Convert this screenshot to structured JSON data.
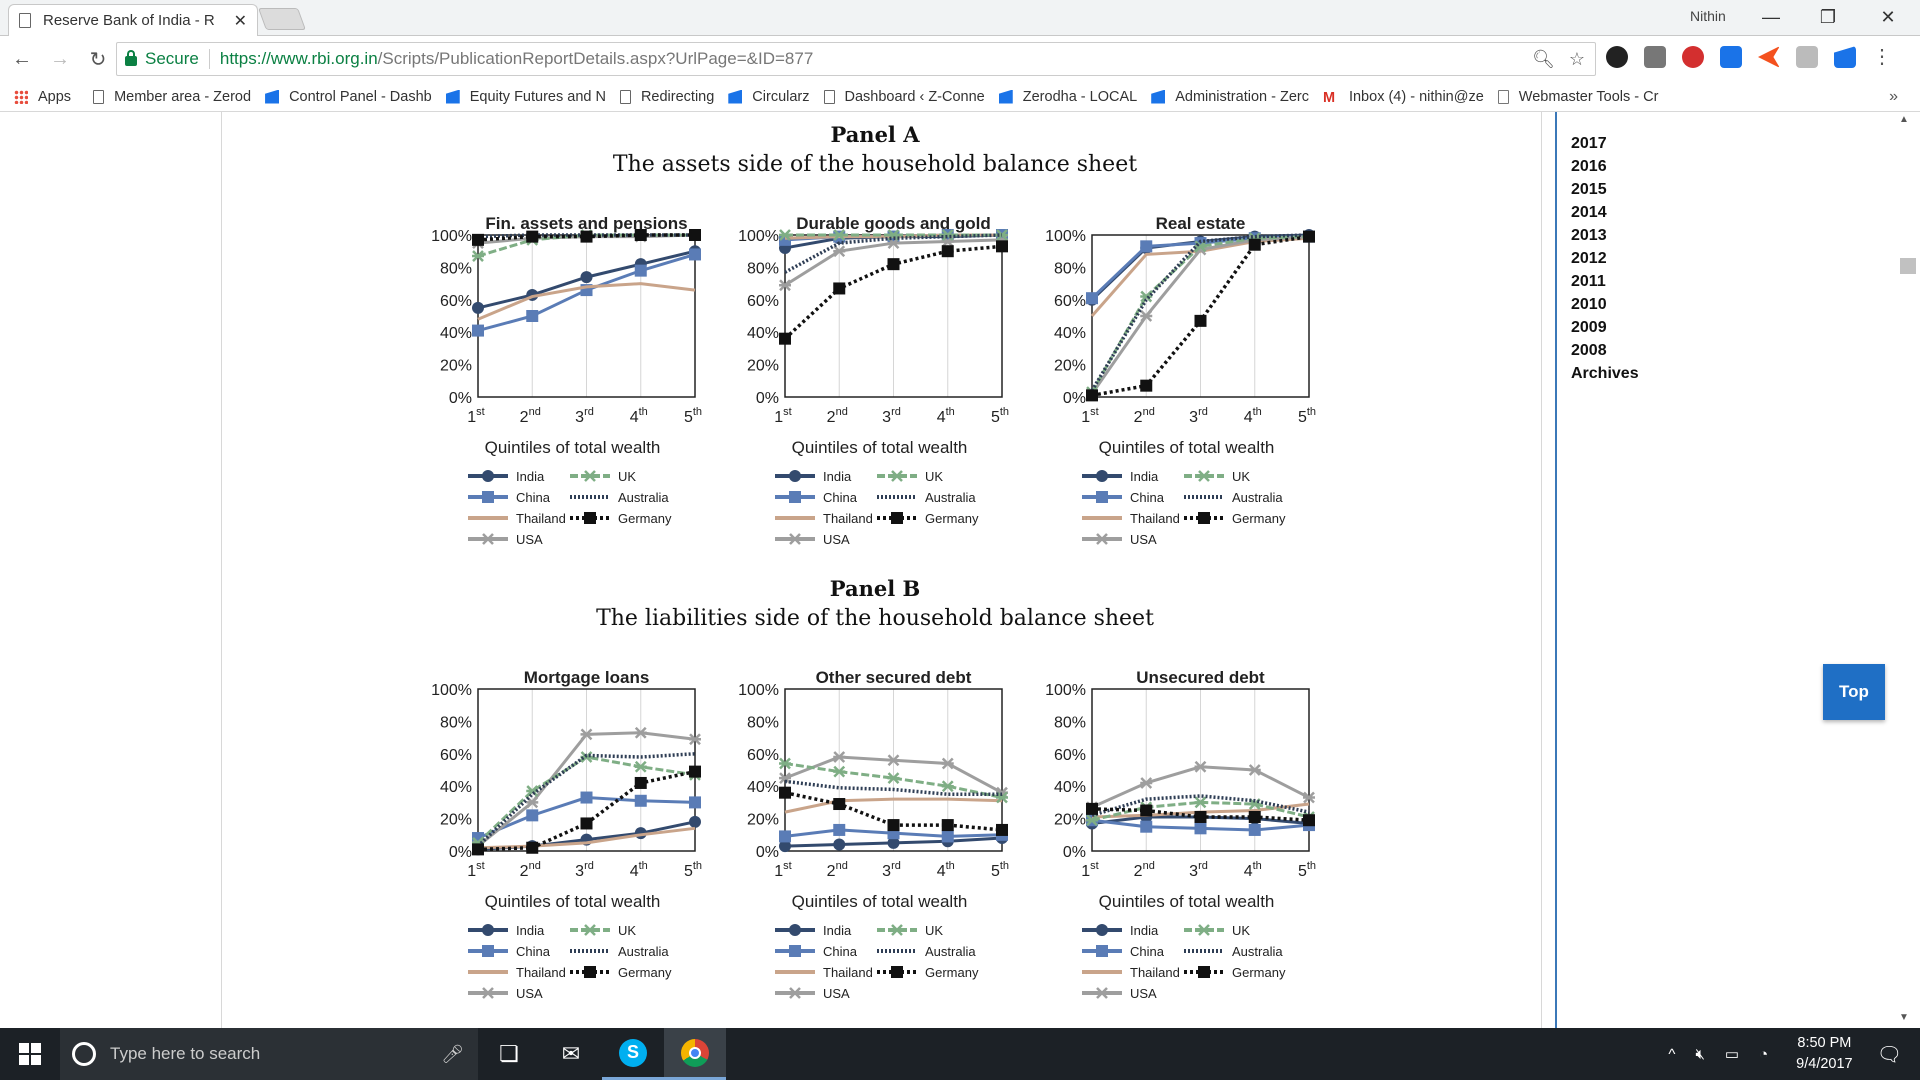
{
  "browser": {
    "tab_title": "Reserve Bank of India - R",
    "user_name": "Nithin",
    "secure_label": "Secure",
    "url_host": "https://www.rbi.org.in",
    "url_path": "/Scripts/PublicationReportDetails.aspx?UrlPage=&ID=877",
    "bookmarks": [
      "Apps",
      "Member area - Zerod",
      "Control Panel - Dashb",
      "Equity Futures and N",
      "Redirecting",
      "Circularz",
      "Dashboard ‹ Z-Conne",
      "Zerodha - LOCAL",
      "Administration - Zerc",
      "Inbox (4) - nithin@ze",
      "Webmaster Tools - Cr"
    ]
  },
  "sidebar": {
    "years": [
      "2017",
      "2016",
      "2015",
      "2014",
      "2013",
      "2012",
      "2011",
      "2010",
      "2009",
      "2008",
      "Archives"
    ],
    "top_button": "Top"
  },
  "panel_a": {
    "heading": "Panel A",
    "subtitle": "The assets side of the household balance sheet"
  },
  "panel_b": {
    "heading": "Panel B",
    "subtitle": "The liabilities side of the household balance sheet"
  },
  "taskbar": {
    "search_placeholder": "Type here to search",
    "time": "8:50 PM",
    "date": "9/4/2017"
  },
  "chart_data": [
    {
      "type": "line",
      "title": "Fin. assets and pensions",
      "xlabel": "Quintiles of total wealth",
      "categories": [
        "1st",
        "2nd",
        "3rd",
        "4th",
        "5th"
      ],
      "ylim": [
        0,
        100
      ],
      "yticks": [
        "0%",
        "20%",
        "40%",
        "60%",
        "80%",
        "100%"
      ],
      "series": [
        {
          "name": "India",
          "values": [
            55,
            63,
            74,
            82,
            90
          ]
        },
        {
          "name": "China",
          "values": [
            41,
            50,
            66,
            78,
            88
          ]
        },
        {
          "name": "Thailand",
          "values": [
            48,
            62,
            68,
            70,
            66
          ]
        },
        {
          "name": "USA",
          "values": [
            95,
            98,
            99,
            99,
            100
          ]
        },
        {
          "name": "UK",
          "values": [
            87,
            97,
            100,
            100,
            100
          ]
        },
        {
          "name": "Australia",
          "values": [
            99,
            100,
            100,
            100,
            100
          ]
        },
        {
          "name": "Germany",
          "values": [
            97,
            99,
            99,
            100,
            100
          ]
        }
      ]
    },
    {
      "type": "line",
      "title": "Durable goods and gold",
      "xlabel": "Quintiles of total wealth",
      "categories": [
        "1st",
        "2nd",
        "3rd",
        "4th",
        "5th"
      ],
      "ylim": [
        0,
        100
      ],
      "yticks": [
        "0%",
        "20%",
        "40%",
        "60%",
        "80%",
        "100%"
      ],
      "series": [
        {
          "name": "India",
          "values": [
            92,
            98,
            99,
            99,
            100
          ]
        },
        {
          "name": "China",
          "values": [
            97,
            99,
            99,
            100,
            100
          ]
        },
        {
          "name": "Thailand",
          "values": [
            98,
            99,
            99,
            100,
            100
          ]
        },
        {
          "name": "USA",
          "values": [
            69,
            90,
            95,
            96,
            97
          ]
        },
        {
          "name": "UK",
          "values": [
            100,
            100,
            100,
            100,
            100
          ]
        },
        {
          "name": "Australia",
          "values": [
            77,
            95,
            98,
            99,
            100
          ]
        },
        {
          "name": "Germany",
          "values": [
            36,
            67,
            82,
            90,
            93
          ]
        }
      ]
    },
    {
      "type": "line",
      "title": "Real estate",
      "xlabel": "Quintiles of total wealth",
      "categories": [
        "1st",
        "2nd",
        "3rd",
        "4th",
        "5th"
      ],
      "ylim": [
        0,
        100
      ],
      "yticks": [
        "0%",
        "20%",
        "40%",
        "60%",
        "80%",
        "100%"
      ],
      "series": [
        {
          "name": "India",
          "values": [
            60,
            92,
            96,
            99,
            100
          ]
        },
        {
          "name": "China",
          "values": [
            61,
            93,
            95,
            98,
            99
          ]
        },
        {
          "name": "Thailand",
          "values": [
            50,
            88,
            90,
            96,
            98
          ]
        },
        {
          "name": "USA",
          "values": [
            2,
            50,
            91,
            97,
            99
          ]
        },
        {
          "name": "UK",
          "values": [
            3,
            62,
            93,
            98,
            99
          ]
        },
        {
          "name": "Australia",
          "values": [
            4,
            60,
            96,
            99,
            100
          ]
        },
        {
          "name": "Germany",
          "values": [
            1,
            7,
            47,
            94,
            99
          ]
        }
      ]
    },
    {
      "type": "line",
      "title": "Mortgage loans",
      "xlabel": "Quintiles of total wealth",
      "categories": [
        "1st",
        "2nd",
        "3rd",
        "4th",
        "5th"
      ],
      "ylim": [
        0,
        100
      ],
      "yticks": [
        "0%",
        "20%",
        "40%",
        "60%",
        "80%",
        "100%"
      ],
      "series": [
        {
          "name": "India",
          "values": [
            1,
            3,
            7,
            11,
            18
          ]
        },
        {
          "name": "China",
          "values": [
            8,
            22,
            33,
            31,
            30
          ]
        },
        {
          "name": "Thailand",
          "values": [
            2,
            3,
            5,
            10,
            14
          ]
        },
        {
          "name": "USA",
          "values": [
            3,
            30,
            72,
            73,
            69
          ]
        },
        {
          "name": "UK",
          "values": [
            5,
            37,
            58,
            52,
            47
          ]
        },
        {
          "name": "Australia",
          "values": [
            3,
            35,
            59,
            58,
            60
          ]
        },
        {
          "name": "Germany",
          "values": [
            1,
            2,
            17,
            42,
            49
          ]
        }
      ]
    },
    {
      "type": "line",
      "title": "Other secured debt",
      "xlabel": "Quintiles of total wealth",
      "categories": [
        "1st",
        "2nd",
        "3rd",
        "4th",
        "5th"
      ],
      "ylim": [
        0,
        100
      ],
      "yticks": [
        "0%",
        "20%",
        "40%",
        "60%",
        "80%",
        "100%"
      ],
      "series": [
        {
          "name": "India",
          "values": [
            3,
            4,
            5,
            6,
            8
          ]
        },
        {
          "name": "China",
          "values": [
            9,
            13,
            11,
            9,
            10
          ]
        },
        {
          "name": "Thailand",
          "values": [
            24,
            31,
            32,
            32,
            31
          ]
        },
        {
          "name": "USA",
          "values": [
            45,
            58,
            56,
            54,
            36
          ]
        },
        {
          "name": "UK",
          "values": [
            54,
            49,
            45,
            40,
            33
          ]
        },
        {
          "name": "Australia",
          "values": [
            43,
            39,
            38,
            35,
            35
          ]
        },
        {
          "name": "Germany",
          "values": [
            36,
            29,
            16,
            16,
            13
          ]
        }
      ]
    },
    {
      "type": "line",
      "title": "Unsecured debt",
      "xlabel": "Quintiles of total wealth",
      "categories": [
        "1st",
        "2nd",
        "3rd",
        "4th",
        "5th"
      ],
      "ylim": [
        0,
        100
      ],
      "yticks": [
        "0%",
        "20%",
        "40%",
        "60%",
        "80%",
        "100%"
      ],
      "series": [
        {
          "name": "India",
          "values": [
            17,
            21,
            21,
            20,
            17
          ]
        },
        {
          "name": "China",
          "values": [
            19,
            15,
            14,
            13,
            16
          ]
        },
        {
          "name": "Thailand",
          "values": [
            21,
            22,
            24,
            25,
            29
          ]
        },
        {
          "name": "USA",
          "values": [
            27,
            42,
            52,
            50,
            33
          ]
        },
        {
          "name": "UK",
          "values": [
            19,
            27,
            30,
            29,
            21
          ]
        },
        {
          "name": "Australia",
          "values": [
            22,
            32,
            34,
            31,
            24
          ]
        },
        {
          "name": "Germany",
          "values": [
            26,
            25,
            21,
            21,
            19
          ]
        }
      ]
    }
  ],
  "legend_styles": {
    "India": {
      "color": "#334a6e",
      "dash": "",
      "marker": "circle"
    },
    "China": {
      "color": "#5a7cb6",
      "dash": "",
      "marker": "square"
    },
    "Thailand": {
      "color": "#c9a48a",
      "dash": "",
      "marker": "none"
    },
    "USA": {
      "color": "#9e9e9e",
      "dash": "",
      "marker": "x"
    },
    "UK": {
      "color": "#7fae85",
      "dash": "8 3",
      "marker": "x"
    },
    "Australia": {
      "color": "#2f3e55",
      "dash": "2 2",
      "marker": "none"
    },
    "Germany": {
      "color": "#111111",
      "dash": "3 3",
      "marker": "square"
    }
  }
}
